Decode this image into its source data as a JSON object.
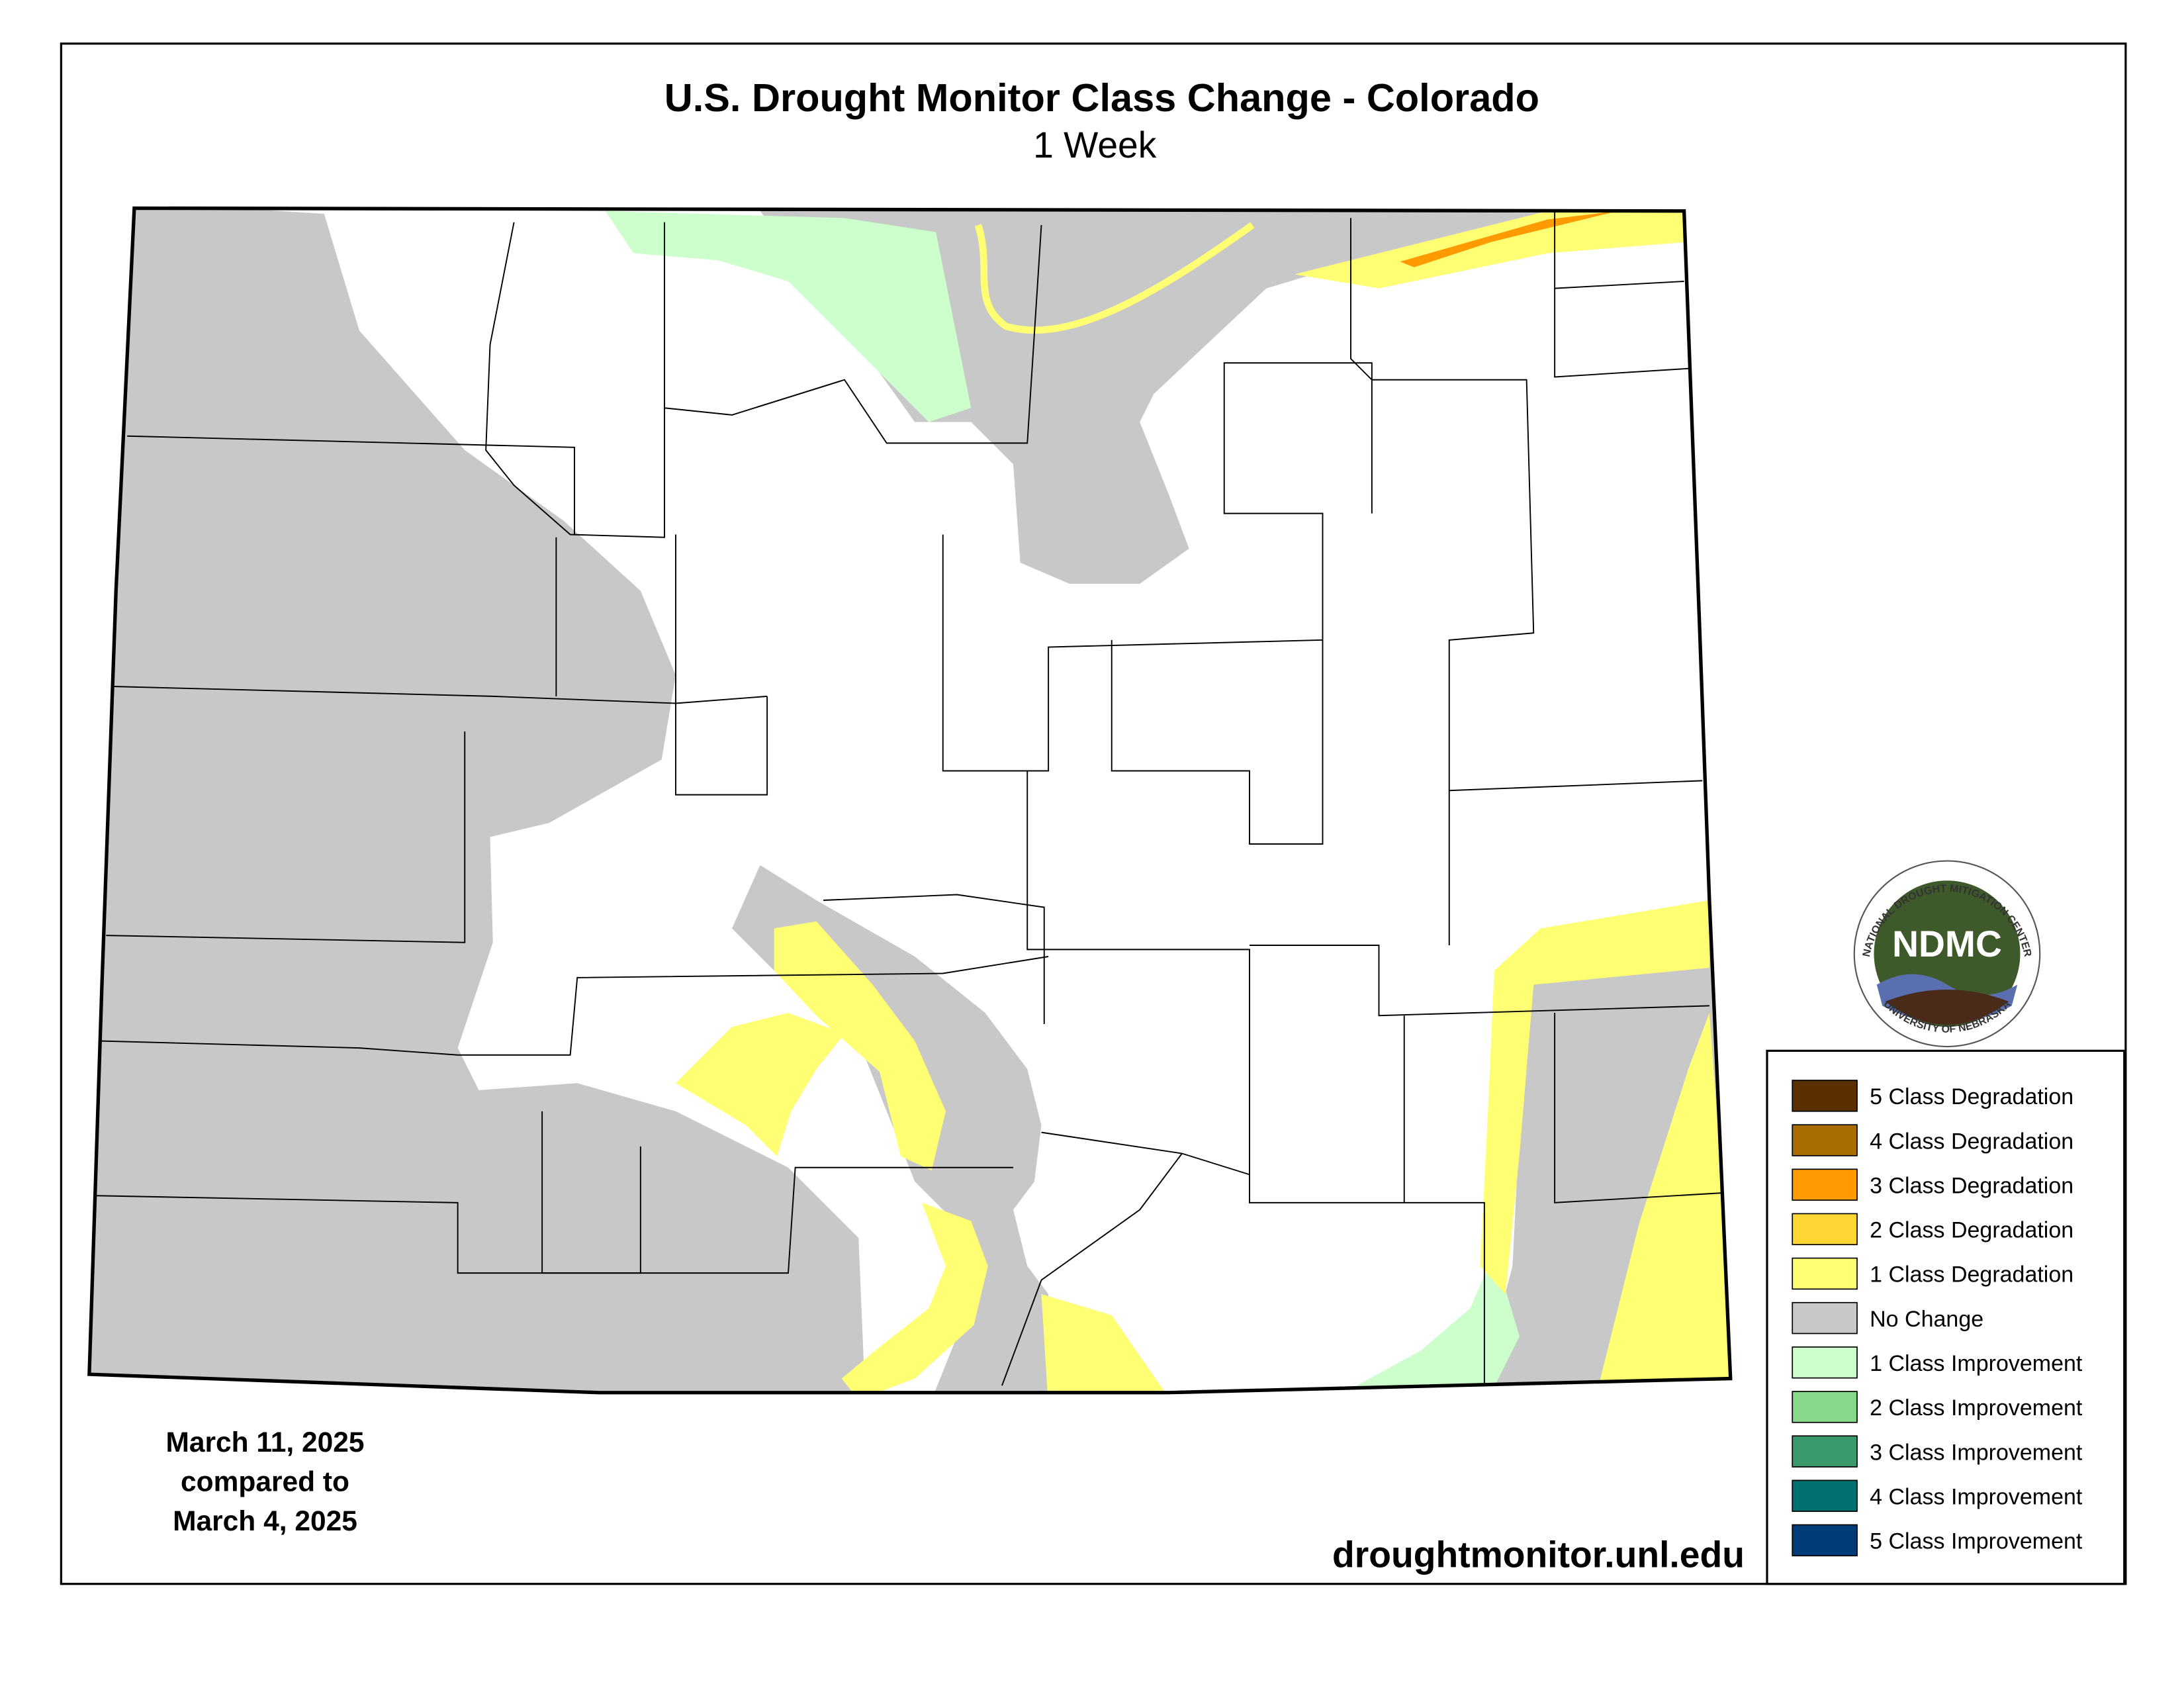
{
  "title": "U.S. Drought Monitor Class Change - Colorado",
  "subtitle": "1 Week",
  "date_lines": [
    "March 11, 2025",
    "compared to",
    "March 4, 2025"
  ],
  "source": "droughtmonitor.unl.edu",
  "logo": {
    "abbr": "NDMC",
    "top": "NATIONAL DROUGHT MITIGATION CENTER",
    "bottom": "UNIVERSITY OF NEBRASKA"
  },
  "legend": [
    {
      "label": "5 Class Degradation",
      "color": "#5a3000"
    },
    {
      "label": "4 Class Degradation",
      "color": "#a86c00"
    },
    {
      "label": "3 Class Degradation",
      "color": "#ff9a00"
    },
    {
      "label": "2 Class Degradation",
      "color": "#ffd633"
    },
    {
      "label": "1 Class Degradation",
      "color": "#ffff73"
    },
    {
      "label": "No Change",
      "color": "#c8c8c8"
    },
    {
      "label": "1 Class Improvement",
      "color": "#ccffcc"
    },
    {
      "label": "2 Class Improvement",
      "color": "#88d88a"
    },
    {
      "label": "3 Class Improvement",
      "color": "#3a9a6b"
    },
    {
      "label": "4 Class Improvement",
      "color": "#007070"
    },
    {
      "label": "5 Class Improvement",
      "color": "#003c78"
    }
  ]
}
